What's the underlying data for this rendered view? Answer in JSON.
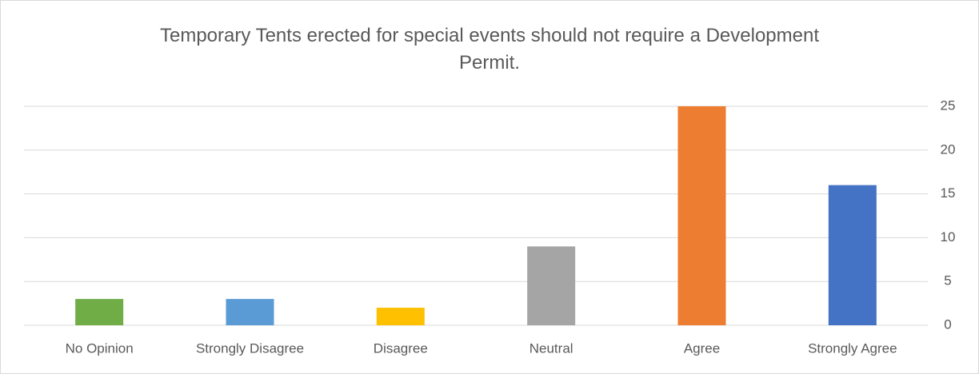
{
  "chart_data": {
    "type": "bar",
    "title": "Temporary Tents erected for special events should not require a Development Permit.",
    "categories": [
      "No Opinion",
      "Strongly Disagree",
      "Disagree",
      "Neutral",
      "Agree",
      "Strongly Agree"
    ],
    "values": [
      3,
      3,
      2,
      9,
      25,
      16
    ],
    "colors": [
      "#70ad47",
      "#5b9bd5",
      "#ffc000",
      "#a5a5a5",
      "#ed7d31",
      "#4472c4"
    ],
    "ylim": [
      0,
      25
    ],
    "yticks": [
      0,
      5,
      10,
      15,
      20,
      25
    ],
    "grid": true
  }
}
